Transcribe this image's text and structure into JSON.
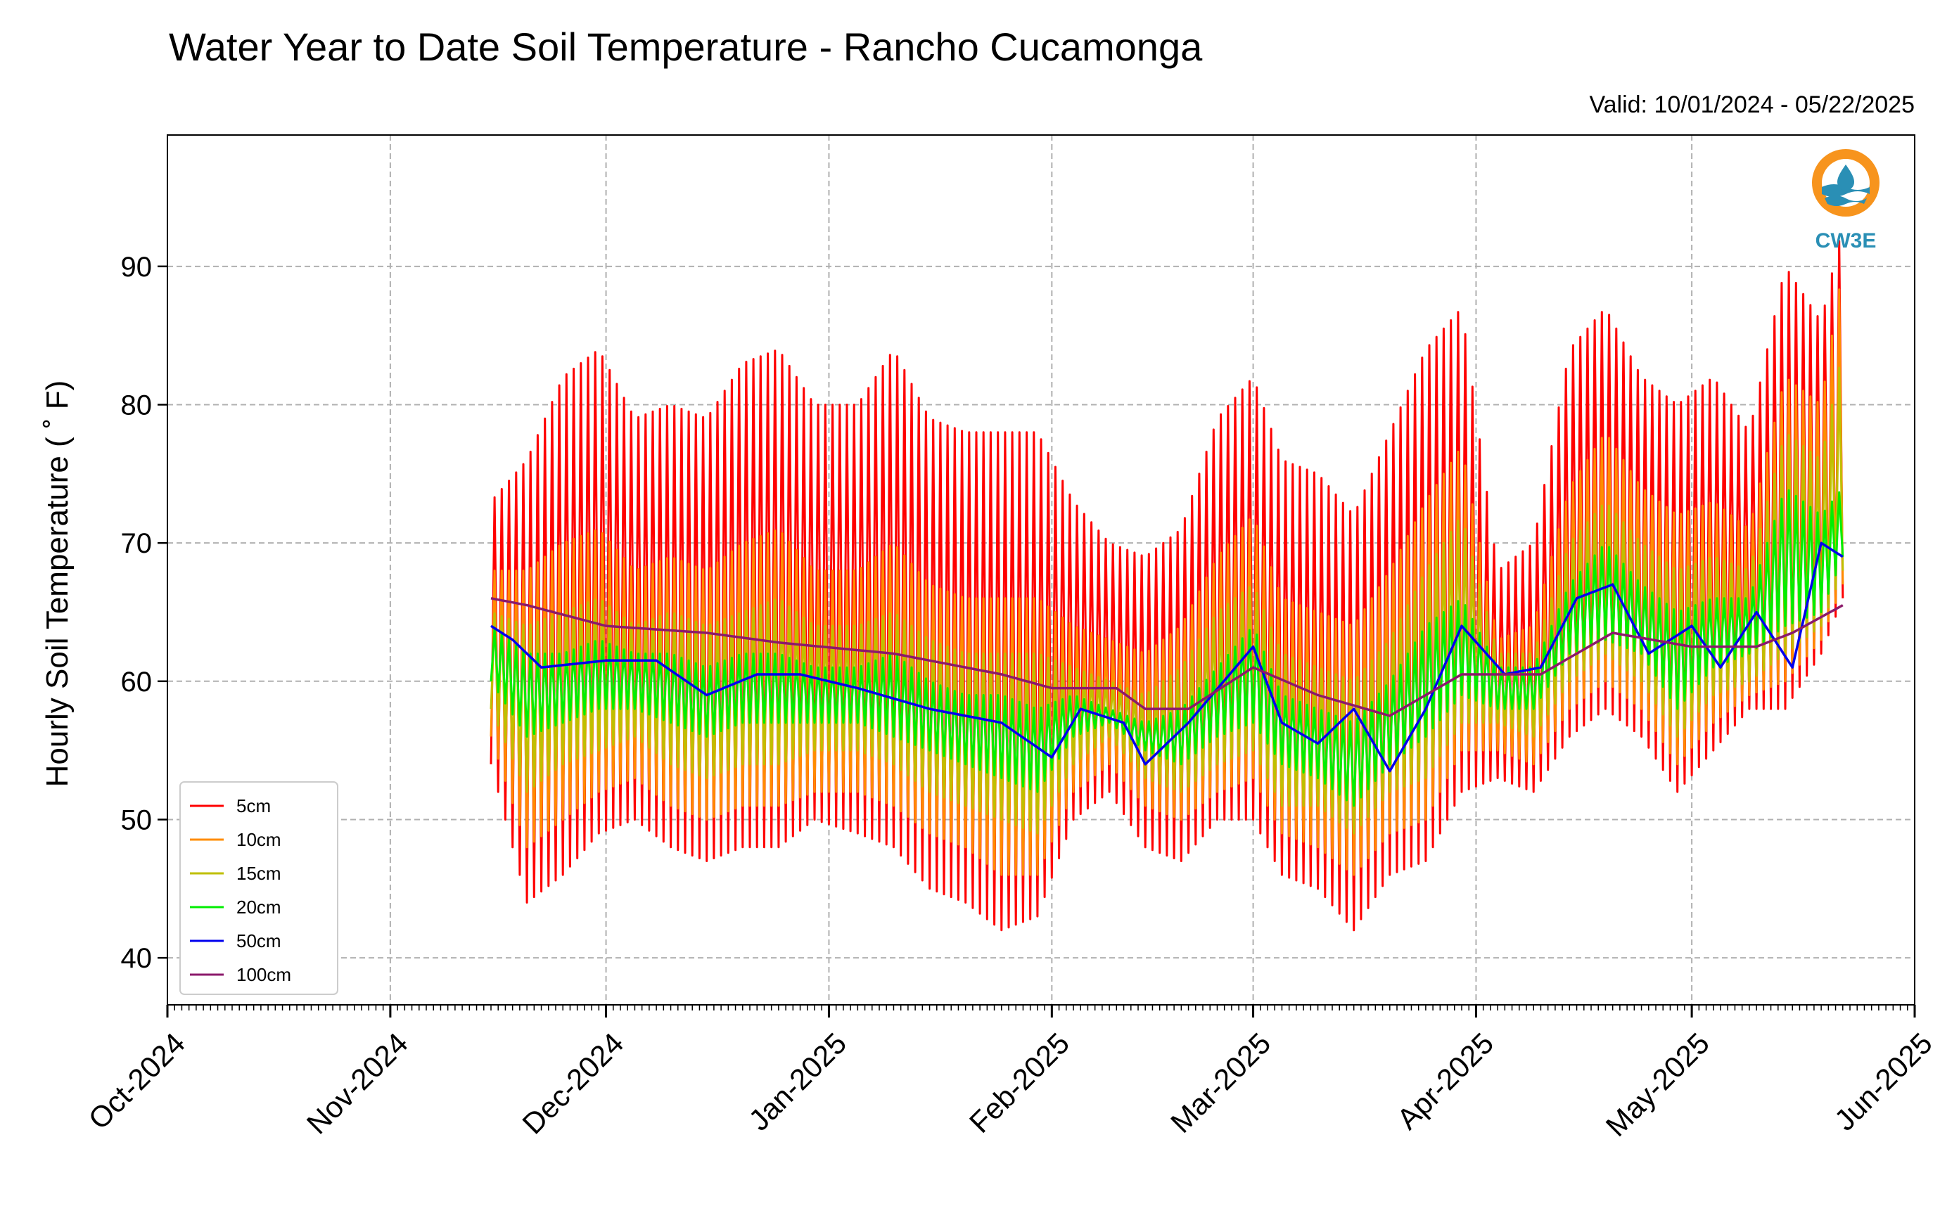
{
  "chart_data": {
    "type": "line",
    "title": "Water Year to Date Soil Temperature - Rancho Cucamonga",
    "subtitle": "Valid: 10/01/2024 - 05/22/2025",
    "ylabel": "Hourly Soil Temperature ( ˚ F)",
    "xlabel": "",
    "xlim": [
      "2024-10-01",
      "2025-06-01"
    ],
    "ylim": [
      36.6,
      99.5
    ],
    "yticks": [
      40,
      50,
      60,
      70,
      80,
      90
    ],
    "xticks": [
      "Oct-2024",
      "Nov-2024",
      "Dec-2024",
      "Jan-2025",
      "Feb-2025",
      "Mar-2025",
      "Apr-2025",
      "May-2025",
      "Jun-2025"
    ],
    "xtick_dates": [
      "2024-10-01",
      "2024-11-01",
      "2024-12-01",
      "2025-01-01",
      "2025-02-01",
      "2025-03-01",
      "2025-04-01",
      "2025-05-01",
      "2025-06-01"
    ],
    "grid": true,
    "legend_position": "lower-left",
    "logo": {
      "text": "CW3E",
      "colors": {
        "ring": "#f7941d",
        "waves": "#2a8fb5"
      }
    },
    "series": [
      {
        "name": "5cm",
        "color": "#ff0000",
        "kind": "diurnal",
        "x": [
          "2024-11-15",
          "2024-11-20",
          "2024-11-25",
          "2024-11-30",
          "2024-12-05",
          "2024-12-10",
          "2024-12-15",
          "2024-12-20",
          "2024-12-25",
          "2024-12-30",
          "2025-01-05",
          "2025-01-10",
          "2025-01-15",
          "2025-01-20",
          "2025-01-25",
          "2025-01-30",
          "2025-02-04",
          "2025-02-09",
          "2025-02-14",
          "2025-02-19",
          "2025-02-24",
          "2025-03-01",
          "2025-03-05",
          "2025-03-10",
          "2025-03-15",
          "2025-03-20",
          "2025-03-25",
          "2025-03-30",
          "2025-04-04",
          "2025-04-09",
          "2025-04-14",
          "2025-04-19",
          "2025-04-24",
          "2025-04-29",
          "2025-05-04",
          "2025-05-09",
          "2025-05-14",
          "2025-05-19",
          "2025-05-22"
        ],
        "max": [
          73,
          76,
          82,
          84,
          79,
          80,
          79,
          83,
          84,
          80,
          80,
          84,
          79,
          78,
          78,
          78,
          73,
          70,
          69,
          71,
          79,
          82,
          76,
          75,
          72,
          78,
          84,
          87,
          68,
          70,
          84,
          87,
          82,
          80,
          82,
          78,
          90,
          86,
          93
        ],
        "min": [
          54,
          44,
          46,
          49,
          50,
          48,
          47,
          48,
          48,
          50,
          49,
          48,
          45,
          44,
          42,
          43,
          50,
          52,
          48,
          47,
          50,
          50,
          46,
          45,
          42,
          46,
          47,
          52,
          53,
          52,
          56,
          58,
          56,
          52,
          55,
          58,
          58,
          62,
          66
        ]
      },
      {
        "name": "10cm",
        "color": "#ff8c00",
        "kind": "diurnal",
        "x": [
          "2024-11-15",
          "2024-11-20",
          "2024-11-25",
          "2024-11-30",
          "2024-12-05",
          "2024-12-10",
          "2024-12-15",
          "2024-12-20",
          "2024-12-25",
          "2024-12-30",
          "2025-01-05",
          "2025-01-10",
          "2025-01-15",
          "2025-01-20",
          "2025-01-25",
          "2025-01-30",
          "2025-02-04",
          "2025-02-09",
          "2025-02-14",
          "2025-02-19",
          "2025-02-24",
          "2025-03-01",
          "2025-03-05",
          "2025-03-10",
          "2025-03-15",
          "2025-03-20",
          "2025-03-25",
          "2025-03-30",
          "2025-04-04",
          "2025-04-09",
          "2025-04-14",
          "2025-04-19",
          "2025-04-24",
          "2025-04-29",
          "2025-05-04",
          "2025-05-09",
          "2025-05-14",
          "2025-05-19",
          "2025-05-22"
        ],
        "max": [
          68,
          68,
          70,
          71,
          68,
          69,
          68,
          70,
          71,
          68,
          68,
          70,
          67,
          66,
          66,
          66,
          64,
          63,
          62,
          64,
          69,
          72,
          66,
          65,
          64,
          68,
          73,
          77,
          63,
          64,
          74,
          78,
          74,
          72,
          73,
          71,
          82,
          80,
          90
        ],
        "min": [
          56,
          48,
          50,
          52,
          53,
          51,
          50,
          51,
          51,
          52,
          52,
          51,
          49,
          48,
          46,
          46,
          52,
          54,
          51,
          50,
          52,
          53,
          49,
          48,
          46,
          49,
          50,
          55,
          55,
          54,
          58,
          60,
          58,
          54,
          57,
          59,
          60,
          63,
          67
        ]
      },
      {
        "name": "15cm",
        "color": "#bfbf00",
        "kind": "diurnal",
        "x": [
          "2024-11-15",
          "2024-11-20",
          "2024-11-25",
          "2024-11-30",
          "2024-12-05",
          "2024-12-10",
          "2024-12-15",
          "2024-12-20",
          "2024-12-25",
          "2024-12-30",
          "2025-01-05",
          "2025-01-10",
          "2025-01-15",
          "2025-01-20",
          "2025-01-25",
          "2025-01-30",
          "2025-02-04",
          "2025-02-09",
          "2025-02-14",
          "2025-02-19",
          "2025-02-24",
          "2025-03-01",
          "2025-03-05",
          "2025-03-10",
          "2025-03-15",
          "2025-03-20",
          "2025-03-25",
          "2025-03-30",
          "2025-04-04",
          "2025-04-09",
          "2025-04-14",
          "2025-04-19",
          "2025-04-24",
          "2025-04-29",
          "2025-05-04",
          "2025-05-09",
          "2025-05-14",
          "2025-05-19",
          "2025-05-22"
        ],
        "max": [
          65,
          64,
          65,
          66,
          64,
          65,
          64,
          65,
          66,
          64,
          64,
          65,
          63,
          62,
          62,
          62,
          61,
          60,
          59,
          61,
          65,
          67,
          62,
          61,
          60,
          63,
          68,
          72,
          62,
          62,
          70,
          73,
          70,
          68,
          69,
          68,
          78,
          76,
          84
        ],
        "min": [
          58,
          52,
          54,
          55,
          56,
          54,
          53,
          54,
          54,
          55,
          55,
          54,
          52,
          51,
          50,
          49,
          54,
          56,
          53,
          52,
          54,
          55,
          51,
          51,
          49,
          52,
          53,
          57,
          57,
          56,
          60,
          62,
          60,
          56,
          59,
          60,
          62,
          64,
          68
        ]
      },
      {
        "name": "20cm",
        "color": "#00ee00",
        "kind": "diurnal",
        "x": [
          "2024-11-15",
          "2024-11-20",
          "2024-11-25",
          "2024-11-30",
          "2024-12-05",
          "2024-12-10",
          "2024-12-15",
          "2024-12-20",
          "2024-12-25",
          "2024-12-30",
          "2025-01-05",
          "2025-01-10",
          "2025-01-15",
          "2025-01-20",
          "2025-01-25",
          "2025-01-30",
          "2025-02-04",
          "2025-02-09",
          "2025-02-14",
          "2025-02-19",
          "2025-02-24",
          "2025-03-01",
          "2025-03-05",
          "2025-03-10",
          "2025-03-15",
          "2025-03-20",
          "2025-03-25",
          "2025-03-30",
          "2025-04-04",
          "2025-04-09",
          "2025-04-14",
          "2025-04-19",
          "2025-04-24",
          "2025-04-29",
          "2025-05-04",
          "2025-05-09",
          "2025-05-14",
          "2025-05-19",
          "2025-05-22"
        ],
        "max": [
          64,
          62,
          62,
          63,
          62,
          62,
          61,
          62,
          62,
          61,
          61,
          62,
          60,
          59,
          59,
          58,
          59,
          58,
          57,
          58,
          61,
          64,
          59,
          58,
          57,
          60,
          64,
          66,
          61,
          61,
          67,
          70,
          67,
          65,
          66,
          66,
          74,
          72,
          74
        ],
        "min": [
          60,
          56,
          57,
          58,
          58,
          57,
          56,
          57,
          57,
          57,
          57,
          56,
          55,
          54,
          53,
          52,
          56,
          57,
          55,
          54,
          56,
          57,
          54,
          53,
          51,
          54,
          56,
          59,
          58,
          58,
          62,
          63,
          62,
          58,
          61,
          62,
          64,
          65,
          69
        ]
      },
      {
        "name": "50cm",
        "color": "#0000ee",
        "kind": "smooth",
        "x": [
          "2024-11-15",
          "2024-11-18",
          "2024-11-22",
          "2024-12-01",
          "2024-12-08",
          "2024-12-15",
          "2024-12-22",
          "2024-12-28",
          "2025-01-05",
          "2025-01-15",
          "2025-01-25",
          "2025-02-01",
          "2025-02-05",
          "2025-02-11",
          "2025-02-14",
          "2025-02-20",
          "2025-03-01",
          "2025-03-05",
          "2025-03-10",
          "2025-03-15",
          "2025-03-20",
          "2025-03-25",
          "2025-03-30",
          "2025-04-05",
          "2025-04-10",
          "2025-04-15",
          "2025-04-20",
          "2025-04-25",
          "2025-05-01",
          "2025-05-05",
          "2025-05-10",
          "2025-05-15",
          "2025-05-19",
          "2025-05-22"
        ],
        "y": [
          64,
          63,
          61,
          61.5,
          61.5,
          59,
          60.5,
          60.5,
          59.5,
          58,
          57,
          54.5,
          58,
          57,
          54,
          57,
          62.5,
          57,
          55.5,
          58,
          53.5,
          58,
          64,
          60.5,
          61,
          66,
          67,
          62,
          64,
          61,
          65,
          61,
          70,
          69
        ]
      },
      {
        "name": "100cm",
        "color": "#8b1a6b",
        "kind": "smooth",
        "x": [
          "2024-11-15",
          "2024-11-20",
          "2024-12-01",
          "2024-12-15",
          "2024-12-25",
          "2025-01-10",
          "2025-01-25",
          "2025-02-01",
          "2025-02-10",
          "2025-02-14",
          "2025-02-20",
          "2025-03-01",
          "2025-03-10",
          "2025-03-20",
          "2025-03-30",
          "2025-04-10",
          "2025-04-20",
          "2025-05-01",
          "2025-05-10",
          "2025-05-15",
          "2025-05-22"
        ],
        "y": [
          66,
          65.5,
          64,
          63.5,
          62.8,
          62,
          60.5,
          59.5,
          59.5,
          58,
          58,
          61,
          59,
          57.5,
          60.5,
          60.5,
          63.5,
          62.5,
          62.5,
          63.5,
          65.5
        ]
      }
    ]
  }
}
